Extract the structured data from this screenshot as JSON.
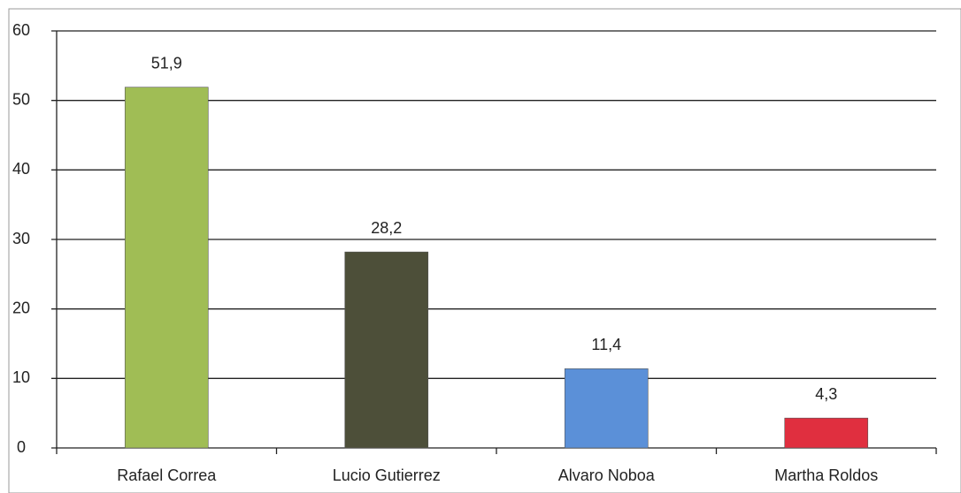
{
  "chart_data": {
    "type": "bar",
    "categories": [
      "Rafael Correa",
      "Lucio Gutierrez",
      "Alvaro Noboa",
      "Martha Roldos"
    ],
    "values": [
      51.9,
      28.2,
      11.4,
      4.3
    ],
    "value_labels": [
      "51,9",
      "28,2",
      "11,4",
      "4,3"
    ],
    "colors": [
      "#a0bd55",
      "#4d4f39",
      "#5b90d8",
      "#e02f3f"
    ],
    "ylim": [
      0,
      60
    ],
    "yticks": [
      0,
      10,
      20,
      30,
      40,
      50,
      60
    ],
    "grid": true
  }
}
